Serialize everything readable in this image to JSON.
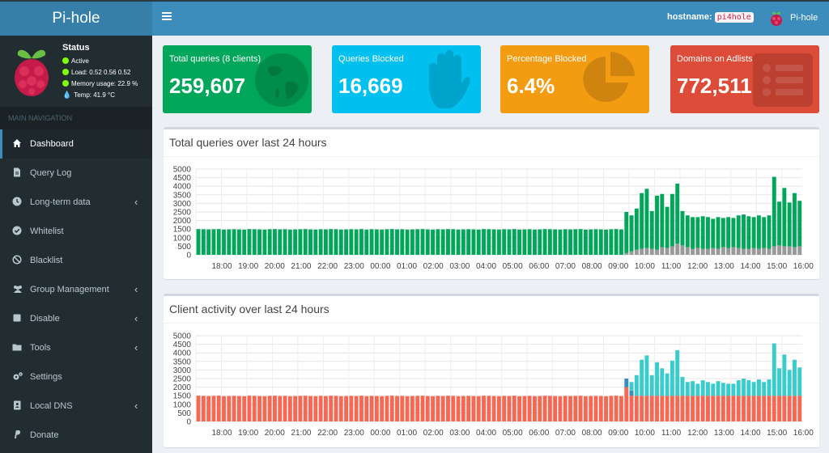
{
  "app": {
    "title": "Pi-hole"
  },
  "navbar": {
    "hostname_label": "hostname:",
    "hostname_value": "pi4hole",
    "user_label": "Pi-hole"
  },
  "status": {
    "title": "Status",
    "active": "Active",
    "load": "Load:  0.52  0.56  0.52",
    "memory": "Memory usage:  22.9 %",
    "temp": "Temp: 41.9 °C"
  },
  "sidebar": {
    "header": "MAIN NAVIGATION",
    "items": [
      {
        "label": "Dashboard",
        "icon": "home-icon",
        "active": true,
        "chevron": false
      },
      {
        "label": "Query Log",
        "icon": "file-icon",
        "active": false,
        "chevron": false
      },
      {
        "label": "Long-term data",
        "icon": "clock-icon",
        "active": false,
        "chevron": true
      },
      {
        "label": "Whitelist",
        "icon": "check-circle-icon",
        "active": false,
        "chevron": false
      },
      {
        "label": "Blacklist",
        "icon": "ban-icon",
        "active": false,
        "chevron": false
      },
      {
        "label": "Group Management",
        "icon": "users-icon",
        "active": false,
        "chevron": true
      },
      {
        "label": "Disable",
        "icon": "stop-icon",
        "active": false,
        "chevron": true
      },
      {
        "label": "Tools",
        "icon": "folder-icon",
        "active": false,
        "chevron": true
      },
      {
        "label": "Settings",
        "icon": "gears-icon",
        "active": false,
        "chevron": false
      },
      {
        "label": "Local DNS",
        "icon": "address-book-icon",
        "active": false,
        "chevron": true
      },
      {
        "label": "Donate",
        "icon": "paypal-icon",
        "active": false,
        "chevron": false
      }
    ]
  },
  "boxes": [
    {
      "title": "Total queries (8 clients)",
      "value": "259,607",
      "color": "#00a65a",
      "icon": "globe-icon"
    },
    {
      "title": "Queries Blocked",
      "value": "16,669",
      "color": "#00c0ef",
      "icon": "hand-icon"
    },
    {
      "title": "Percentage Blocked",
      "value": "6.4%",
      "color": "#f39c12",
      "icon": "pie-chart-icon"
    },
    {
      "title": "Domains on Adlists",
      "value": "772,511",
      "color": "#dd4b39",
      "icon": "list-icon"
    }
  ],
  "charts": {
    "queries_title": "Total queries over last 24 hours",
    "clients_title": "Client activity over last 24 hours"
  },
  "chart_data": [
    {
      "type": "bar",
      "stacked": true,
      "title": "Total queries over last 24 hours",
      "x_ticks": [
        "18:00",
        "19:00",
        "20:00",
        "21:00",
        "22:00",
        "23:00",
        "00:00",
        "01:00",
        "02:00",
        "03:00",
        "04:00",
        "05:00",
        "06:00",
        "07:00",
        "08:00",
        "09:00",
        "10:00",
        "11:00",
        "12:00",
        "13:00",
        "14:00",
        "15:00",
        "16:00"
      ],
      "y_ticks": [
        "5000",
        "4500",
        "4000",
        "3500",
        "3000",
        "2500",
        "2000",
        "1500",
        "1000",
        "500",
        "0"
      ],
      "ylim": [
        0,
        5000
      ],
      "grid": true,
      "series": [
        {
          "color": "#999999",
          "values": [
            0,
            0,
            0,
            0,
            0,
            0,
            0,
            0,
            0,
            0,
            0,
            0,
            0,
            0,
            0,
            0,
            0,
            0,
            0,
            0,
            0,
            0,
            0,
            0,
            0,
            0,
            0,
            0,
            0,
            0,
            0,
            0,
            0,
            0,
            0,
            0,
            0,
            0,
            0,
            0,
            0,
            0,
            0,
            0,
            0,
            0,
            0,
            0,
            0,
            0,
            0,
            0,
            0,
            0,
            0,
            0,
            0,
            0,
            0,
            0,
            0,
            0,
            0,
            0,
            0,
            0,
            0,
            0,
            0,
            0,
            0,
            0,
            0,
            0,
            0,
            0,
            0,
            0,
            0,
            0,
            0,
            0,
            0,
            0,
            100,
            200,
            300,
            350,
            400,
            350,
            300,
            450,
            400,
            500,
            650,
            550,
            450,
            350,
            400,
            350,
            350,
            400,
            350,
            450,
            400,
            450,
            400,
            350,
            350,
            400,
            350,
            400,
            350,
            500,
            550,
            500,
            500,
            450,
            500
          ]
        },
        {
          "color": "#00a65a",
          "values": [
            1500,
            1490,
            1480,
            1490,
            1500,
            1470,
            1480,
            1490,
            1480,
            1470,
            1500,
            1490,
            1480,
            1470,
            1490,
            1500,
            1480,
            1490,
            1470,
            1480,
            1490,
            1500,
            1480,
            1470,
            1490,
            1480,
            1500,
            1490,
            1470,
            1480,
            1490,
            1480,
            1500,
            1470,
            1490,
            1480,
            1470,
            1490,
            1500,
            1480,
            1490,
            1470,
            1480,
            1490,
            1500,
            1480,
            1470,
            1490,
            1480,
            1500,
            1490,
            1470,
            1480,
            1490,
            1480,
            1470,
            1500,
            1490,
            1480,
            1470,
            1490,
            1480,
            1500,
            1470,
            1480,
            1490,
            1470,
            1480,
            1500,
            1490,
            1480,
            1470,
            1490,
            1480,
            1490,
            1500,
            1470,
            1480,
            1490,
            1480,
            1470,
            1490,
            1500,
            1480,
            2400,
            2100,
            2400,
            3250,
            3450,
            2200,
            3150,
            3100,
            2400,
            3050,
            3500,
            2000,
            1850,
            1850,
            1800,
            1900,
            1850,
            1700,
            1850,
            1700,
            1800,
            1700,
            1900,
            2000,
            1900,
            1800,
            1950,
            1800,
            1950,
            4050,
            2550,
            3400,
            2550,
            3150,
            2650
          ]
        }
      ]
    },
    {
      "type": "bar",
      "stacked": true,
      "title": "Client activity over last 24 hours",
      "x_ticks": [
        "18:00",
        "19:00",
        "20:00",
        "21:00",
        "22:00",
        "23:00",
        "00:00",
        "01:00",
        "02:00",
        "03:00",
        "04:00",
        "05:00",
        "06:00",
        "07:00",
        "08:00",
        "09:00",
        "10:00",
        "11:00",
        "12:00",
        "13:00",
        "14:00",
        "15:00",
        "16:00"
      ],
      "y_ticks": [
        "5000",
        "4500",
        "4000",
        "3500",
        "3000",
        "2500",
        "2000",
        "1500",
        "1000",
        "500",
        "0"
      ],
      "ylim": [
        0,
        5000
      ],
      "grid": true,
      "series": [
        {
          "color": "#f56954",
          "values": [
            1500,
            1490,
            1480,
            1490,
            1500,
            1470,
            1480,
            1490,
            1480,
            1470,
            1500,
            1490,
            1480,
            1470,
            1490,
            1500,
            1480,
            1490,
            1470,
            1480,
            1490,
            1500,
            1480,
            1470,
            1490,
            1480,
            1500,
            1490,
            1470,
            1480,
            1490,
            1480,
            1500,
            1470,
            1490,
            1480,
            1470,
            1490,
            1500,
            1480,
            1490,
            1470,
            1480,
            1490,
            1500,
            1480,
            1470,
            1490,
            1480,
            1500,
            1490,
            1470,
            1480,
            1490,
            1480,
            1470,
            1500,
            1490,
            1480,
            1470,
            1490,
            1480,
            1500,
            1470,
            1480,
            1490,
            1470,
            1480,
            1500,
            1490,
            1480,
            1470,
            1490,
            1480,
            1490,
            1500,
            1470,
            1480,
            1490,
            1480,
            1470,
            1490,
            1500,
            1480,
            2000,
            1500,
            1500,
            1500,
            1500,
            1500,
            1500,
            1500,
            1500,
            1500,
            1500,
            1500,
            1500,
            1500,
            1500,
            1500,
            1500,
            1500,
            1500,
            1500,
            1500,
            1500,
            1500,
            1500,
            1500,
            1500,
            1500,
            1500,
            1500,
            1500,
            1500,
            1500,
            1500,
            1500,
            1500
          ]
        },
        {
          "color": "#3c8dbc",
          "values": [
            0,
            0,
            0,
            0,
            0,
            0,
            0,
            0,
            0,
            0,
            0,
            0,
            0,
            0,
            0,
            0,
            0,
            0,
            0,
            0,
            0,
            0,
            0,
            0,
            0,
            0,
            0,
            0,
            0,
            0,
            0,
            0,
            0,
            0,
            0,
            0,
            0,
            0,
            0,
            0,
            0,
            0,
            0,
            0,
            0,
            0,
            0,
            0,
            0,
            0,
            0,
            0,
            0,
            0,
            0,
            0,
            0,
            0,
            0,
            0,
            0,
            0,
            0,
            0,
            0,
            0,
            0,
            0,
            0,
            0,
            0,
            0,
            0,
            0,
            0,
            0,
            0,
            0,
            0,
            0,
            0,
            0,
            0,
            0,
            500,
            300,
            0,
            0,
            0,
            0,
            0,
            0,
            0,
            0,
            0,
            0,
            0,
            0,
            0,
            0,
            0,
            0,
            0,
            0,
            0,
            0,
            0,
            0,
            0,
            0,
            0,
            0,
            0,
            0,
            0,
            0,
            0,
            0,
            0
          ]
        },
        {
          "color": "#39cccc",
          "values": [
            0,
            0,
            0,
            0,
            0,
            0,
            0,
            0,
            0,
            0,
            0,
            0,
            0,
            0,
            0,
            0,
            0,
            0,
            0,
            0,
            0,
            0,
            0,
            0,
            0,
            0,
            0,
            0,
            0,
            0,
            0,
            0,
            0,
            0,
            0,
            0,
            0,
            0,
            0,
            0,
            0,
            0,
            0,
            0,
            0,
            0,
            0,
            0,
            0,
            0,
            0,
            0,
            0,
            0,
            0,
            0,
            0,
            0,
            0,
            0,
            0,
            0,
            0,
            0,
            0,
            0,
            0,
            0,
            0,
            0,
            0,
            0,
            0,
            0,
            0,
            0,
            0,
            0,
            0,
            0,
            0,
            0,
            0,
            0,
            0,
            500,
            1200,
            2100,
            2350,
            1200,
            1950,
            1600,
            1300,
            2050,
            2650,
            1100,
            800,
            850,
            700,
            900,
            800,
            700,
            850,
            750,
            700,
            700,
            900,
            1000,
            900,
            800,
            950,
            800,
            950,
            3050,
            1600,
            2400,
            1500,
            2100,
            1650
          ]
        }
      ]
    }
  ]
}
